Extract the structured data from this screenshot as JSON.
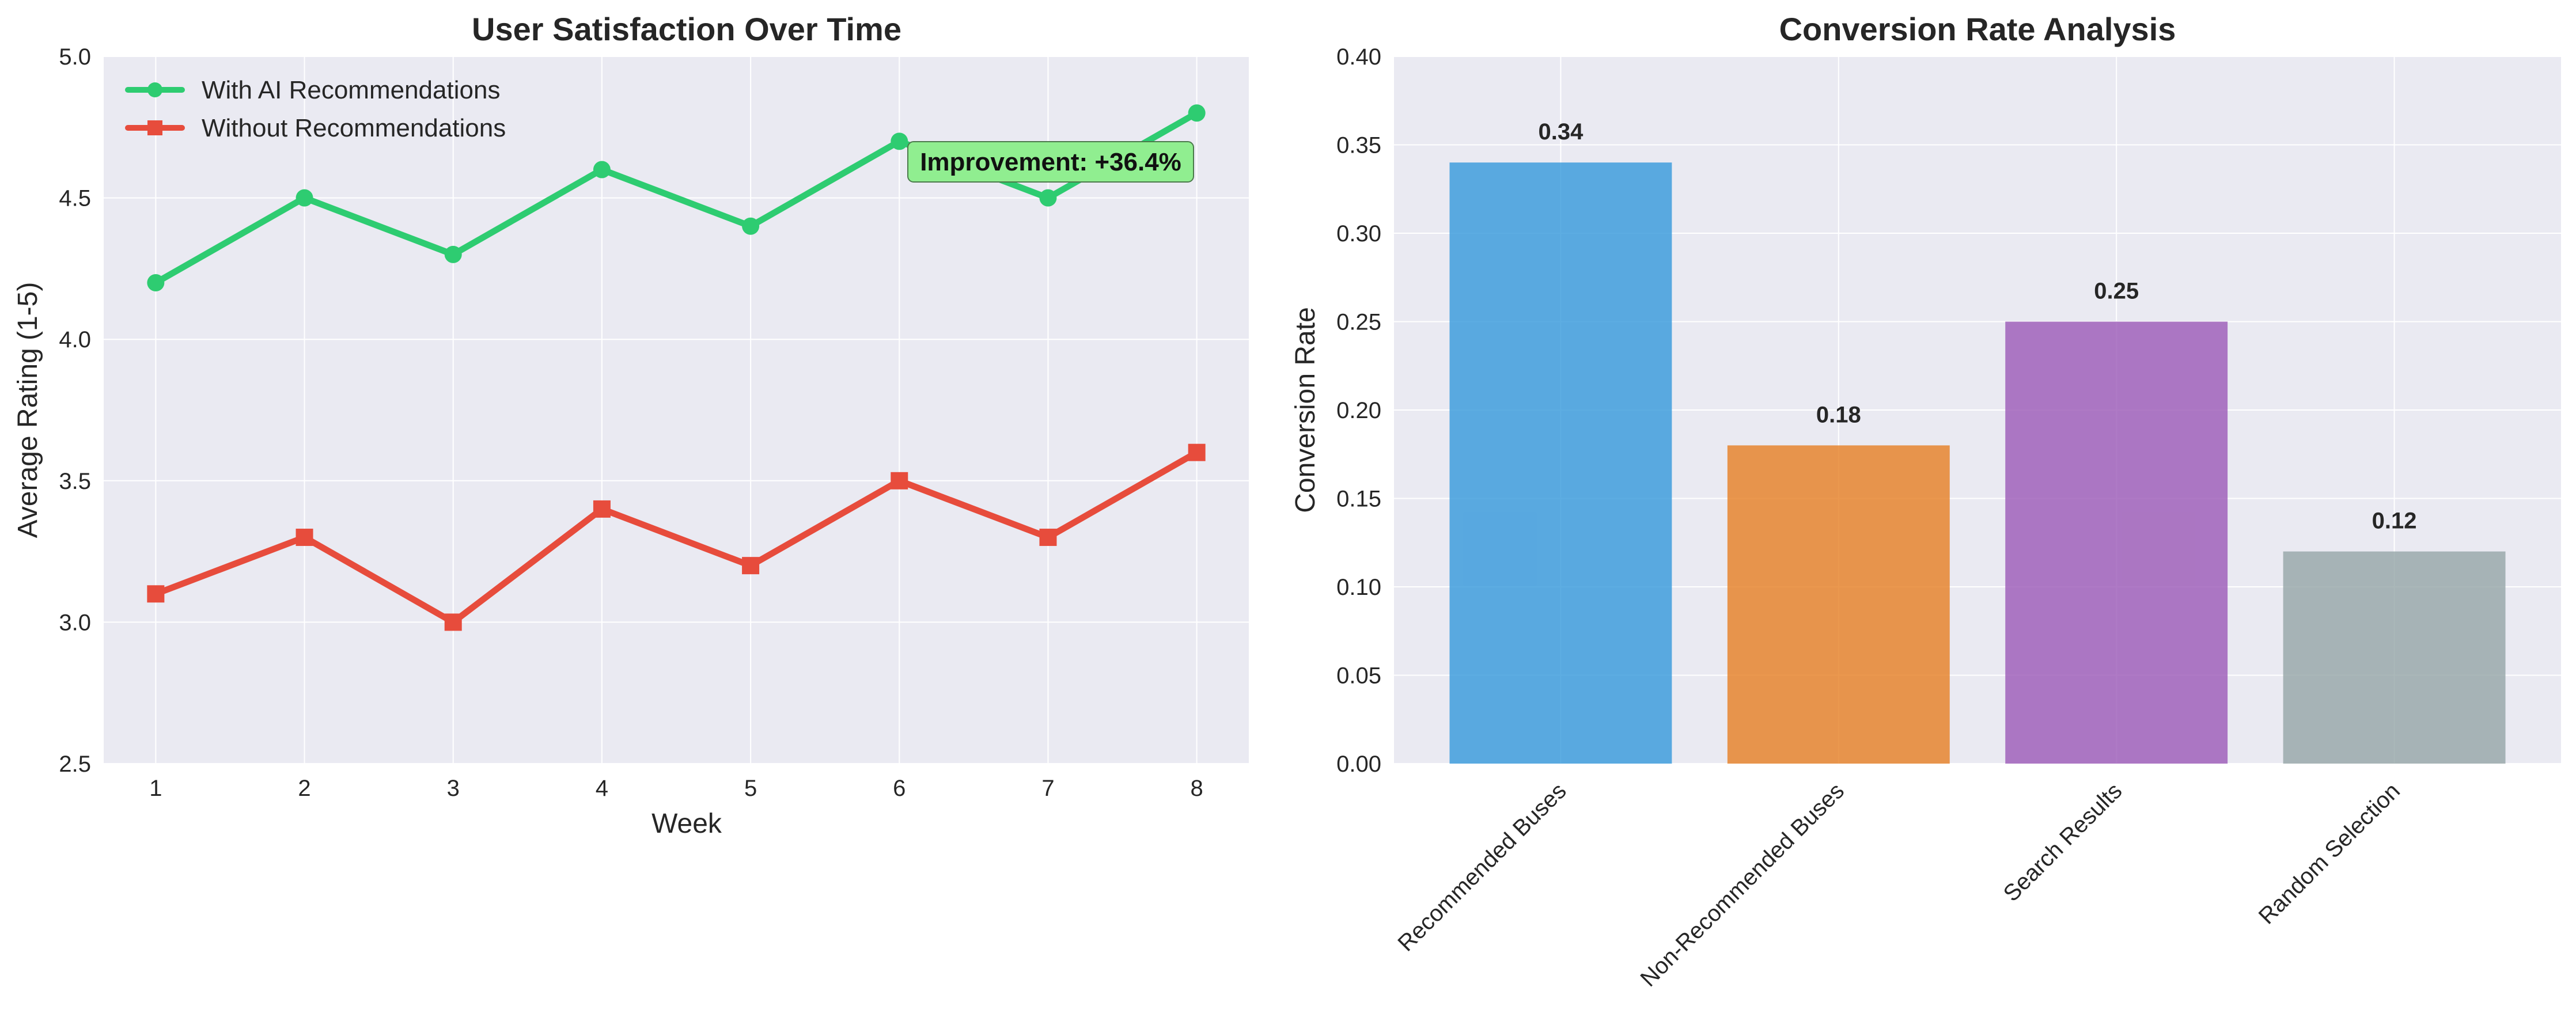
{
  "chart_data": [
    {
      "type": "line",
      "title": "User Satisfaction Over Time",
      "xlabel": "Week",
      "ylabel": "Average Rating (1-5)",
      "x": [
        1,
        2,
        3,
        4,
        5,
        6,
        7,
        8
      ],
      "xlim": [
        0.65,
        8.35
      ],
      "ylim": [
        2.5,
        5.0
      ],
      "yticks": [
        "2.5",
        "3.0",
        "3.5",
        "4.0",
        "4.5",
        "5.0"
      ],
      "grid": true,
      "legend_position": "upper-left",
      "series": [
        {
          "name": "With AI Recommendations",
          "values": [
            4.2,
            4.5,
            4.3,
            4.6,
            4.4,
            4.7,
            4.5,
            4.8
          ],
          "color": "#2ecc71",
          "marker": "circle"
        },
        {
          "name": "Without Recommendations",
          "values": [
            3.1,
            3.3,
            3.0,
            3.4,
            3.2,
            3.5,
            3.3,
            3.6
          ],
          "color": "#e74c3c",
          "marker": "square"
        }
      ],
      "annotation": {
        "text": "Improvement: +36.4%",
        "background": "#90ee90"
      }
    },
    {
      "type": "bar",
      "title": "Conversion Rate Analysis",
      "xlabel": "",
      "ylabel": "Conversion Rate",
      "categories": [
        "Recommended Buses",
        "Non-Recommended Buses",
        "Search Results",
        "Random Selection"
      ],
      "values": [
        0.34,
        0.18,
        0.25,
        0.12
      ],
      "value_labels": [
        "0.34",
        "0.18",
        "0.25",
        "0.12"
      ],
      "colors": [
        "#3498db",
        "#e67e22",
        "#9b59b6",
        "#95a5a6"
      ],
      "ylim": [
        0.0,
        0.4
      ],
      "yticks": [
        "0.00",
        "0.05",
        "0.10",
        "0.15",
        "0.20",
        "0.25",
        "0.30",
        "0.35",
        "0.40"
      ],
      "grid": true
    }
  ]
}
